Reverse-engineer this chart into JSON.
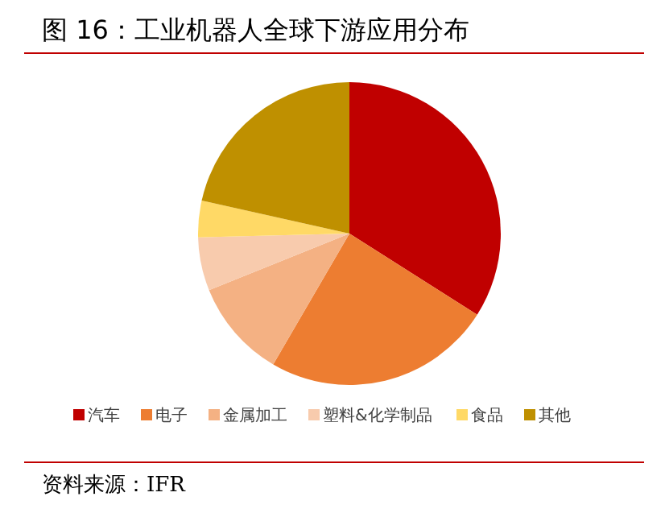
{
  "chart_data": {
    "type": "pie",
    "title": "图 16：工业机器人全球下游应用分布",
    "categories": [
      "汽车",
      "电子",
      "金属加工",
      "塑料&化学制品",
      "食品",
      "其他"
    ],
    "values": [
      34,
      24.4,
      10.5,
      5.7,
      3.9,
      21.5
    ],
    "colors": [
      "#c00000",
      "#ed7d31",
      "#f4b183",
      "#f8cbad",
      "#ffd966",
      "#bf9000"
    ],
    "legend": "bottom",
    "annotations": [
      "资料来源：IFR"
    ]
  }
}
